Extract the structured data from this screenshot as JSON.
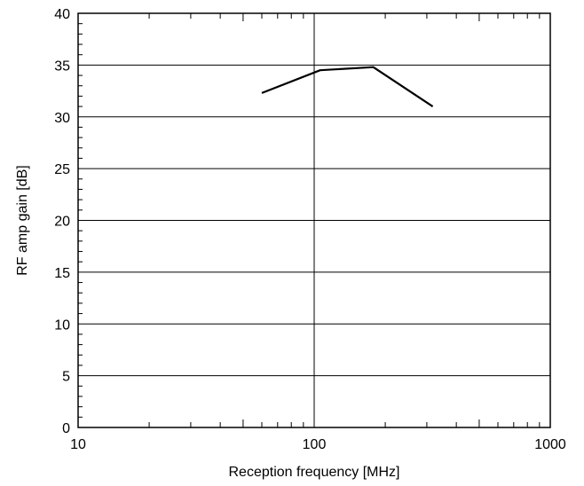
{
  "chart_data": {
    "type": "line",
    "title": "",
    "xlabel": "Reception frequency [MHz]",
    "ylabel": "RF amp gain [dB]",
    "x_scale": "log",
    "xlim": [
      10,
      1000
    ],
    "ylim": [
      0,
      40
    ],
    "x_tick_labels": [
      "10",
      "100",
      "1000"
    ],
    "y_tick_labels": [
      "0",
      "5",
      "10",
      "15",
      "20",
      "25",
      "30",
      "35",
      "40"
    ],
    "grid": true,
    "legend": "none",
    "series": [
      {
        "x": [
          60,
          106,
          178,
          318
        ],
        "y": [
          32.3,
          34.5,
          34.8,
          31.0
        ],
        "color": "#000000"
      }
    ]
  }
}
